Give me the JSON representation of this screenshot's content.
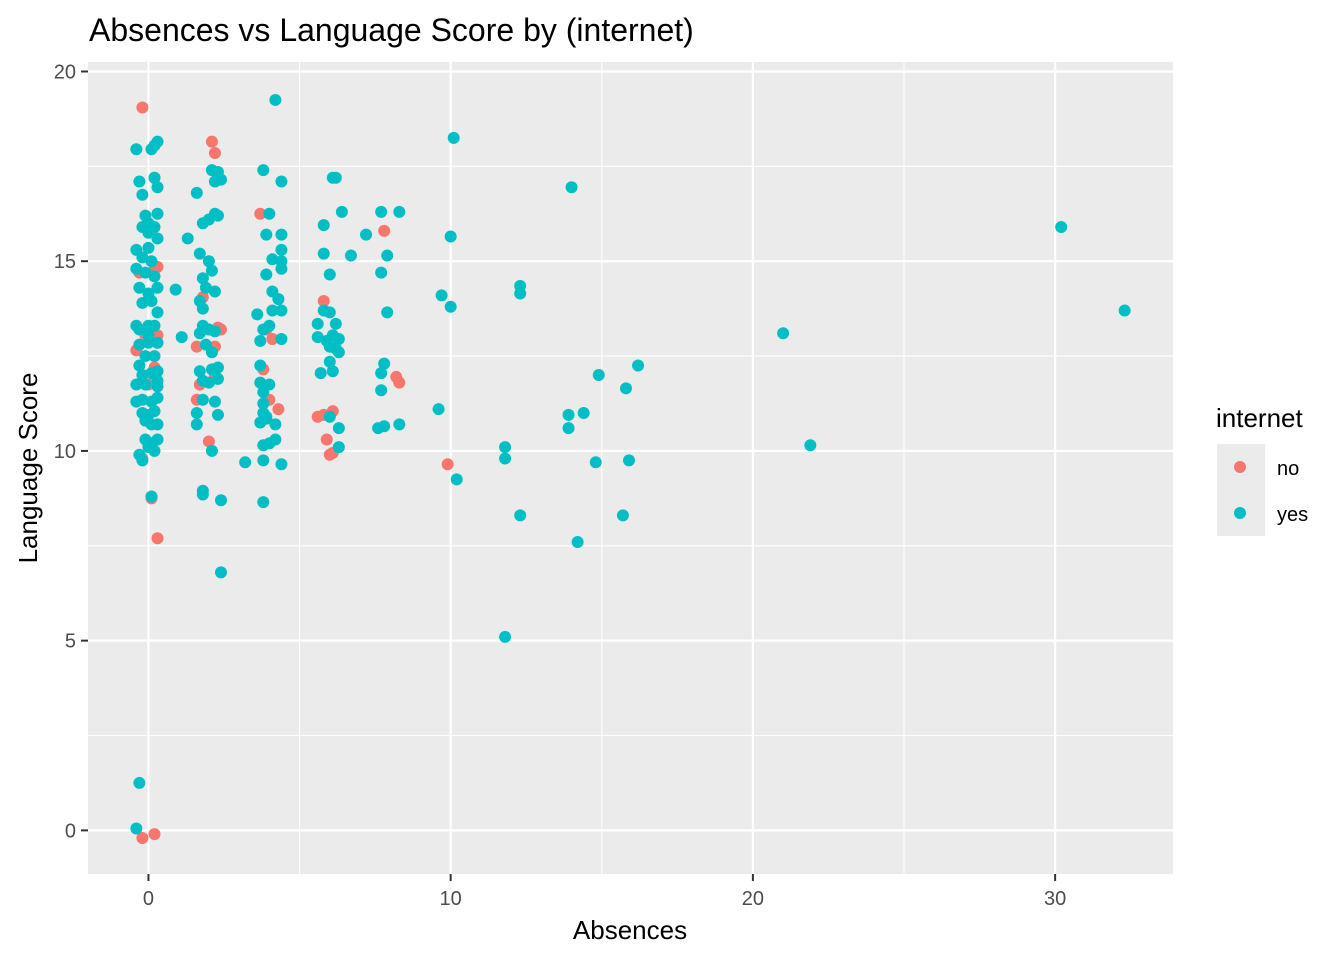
{
  "chart_data": {
    "type": "scatter",
    "title": "Absences vs Language Score by (internet)",
    "xlabel": "Absences",
    "ylabel": "Language Score",
    "xlim": [
      -2.0,
      33.9
    ],
    "ylim": [
      -1.15,
      20.25
    ],
    "x_ticks": [
      0,
      10,
      20,
      30
    ],
    "y_ticks": [
      0,
      5,
      10,
      15,
      20
    ],
    "x_tick_labels": [
      "0",
      "10",
      "20",
      "30"
    ],
    "y_tick_labels": [
      "0",
      "5",
      "10",
      "15",
      "20"
    ],
    "grid": true,
    "legend": {
      "title": "internet",
      "position": "right"
    },
    "colors": {
      "no": "#F8766D",
      "yes": "#00BFC4",
      "panel": "#EBEBEB",
      "grid": "#FFFFFF"
    },
    "series": [
      {
        "name": "no",
        "color": "#F8766D",
        "points": [
          [
            -0.2,
            19.05
          ],
          [
            0.2,
            17.2
          ],
          [
            0.1,
            14.7
          ],
          [
            0.3,
            14.85
          ],
          [
            -0.3,
            14.7
          ],
          [
            -0.4,
            12.65
          ],
          [
            -0.1,
            13.05
          ],
          [
            0.2,
            12.2
          ],
          [
            0.1,
            8.75
          ],
          [
            0.3,
            7.7
          ],
          [
            0.0,
            11.75
          ],
          [
            -0.2,
            9.8
          ],
          [
            -0.2,
            -0.2
          ],
          [
            0.2,
            -0.1
          ],
          [
            0.3,
            13.05
          ],
          [
            2.1,
            18.15
          ],
          [
            2.2,
            17.85
          ],
          [
            1.8,
            14.05
          ],
          [
            1.6,
            12.75
          ],
          [
            2.3,
            13.25
          ],
          [
            2.2,
            12.75
          ],
          [
            1.7,
            11.75
          ],
          [
            1.6,
            11.35
          ],
          [
            2.0,
            10.25
          ],
          [
            2.2,
            12.0
          ],
          [
            2.4,
            13.2
          ],
          [
            3.7,
            16.25
          ],
          [
            3.9,
            13.2
          ],
          [
            4.1,
            12.95
          ],
          [
            3.8,
            12.15
          ],
          [
            4.0,
            11.35
          ],
          [
            4.3,
            11.1
          ],
          [
            5.8,
            13.95
          ],
          [
            5.6,
            10.9
          ],
          [
            5.8,
            10.95
          ],
          [
            6.1,
            11.05
          ],
          [
            5.9,
            10.3
          ],
          [
            6.0,
            9.9
          ],
          [
            6.1,
            9.95
          ],
          [
            7.8,
            15.8
          ],
          [
            8.2,
            11.95
          ],
          [
            8.3,
            11.8
          ],
          [
            9.9,
            9.65
          ]
        ]
      },
      {
        "name": "yes",
        "color": "#00BFC4",
        "points": [
          [
            -0.4,
            17.95
          ],
          [
            -0.3,
            17.1
          ],
          [
            -0.2,
            16.75
          ],
          [
            -0.1,
            16.2
          ],
          [
            0.0,
            16.0
          ],
          [
            0.1,
            17.95
          ],
          [
            0.2,
            18.05
          ],
          [
            0.3,
            18.15
          ],
          [
            0.2,
            17.2
          ],
          [
            0.3,
            16.95
          ],
          [
            0.3,
            16.25
          ],
          [
            -0.2,
            15.9
          ],
          [
            0.0,
            15.75
          ],
          [
            0.2,
            15.9
          ],
          [
            0.3,
            15.6
          ],
          [
            -0.4,
            15.3
          ],
          [
            -0.2,
            15.1
          ],
          [
            0.0,
            15.35
          ],
          [
            0.1,
            15.0
          ],
          [
            -0.4,
            14.8
          ],
          [
            -0.1,
            14.7
          ],
          [
            0.2,
            14.6
          ],
          [
            -0.3,
            14.3
          ],
          [
            0.0,
            14.15
          ],
          [
            0.3,
            14.3
          ],
          [
            -0.2,
            13.9
          ],
          [
            0.1,
            13.95
          ],
          [
            0.3,
            13.65
          ],
          [
            -0.4,
            13.3
          ],
          [
            -0.3,
            13.2
          ],
          [
            0.0,
            13.3
          ],
          [
            0.2,
            13.3
          ],
          [
            0.0,
            13.05
          ],
          [
            -0.3,
            12.8
          ],
          [
            0.0,
            12.85
          ],
          [
            0.3,
            12.85
          ],
          [
            -0.1,
            12.5
          ],
          [
            0.2,
            12.5
          ],
          [
            -0.3,
            12.25
          ],
          [
            0.3,
            12.1
          ],
          [
            -0.2,
            12.0
          ],
          [
            0.1,
            12.05
          ],
          [
            0.3,
            11.85
          ],
          [
            -0.4,
            11.75
          ],
          [
            -0.1,
            11.75
          ],
          [
            0.3,
            11.7
          ],
          [
            -0.4,
            11.3
          ],
          [
            -0.2,
            11.35
          ],
          [
            0.1,
            11.3
          ],
          [
            0.3,
            11.4
          ],
          [
            -0.2,
            11.0
          ],
          [
            0.0,
            10.95
          ],
          [
            0.2,
            11.05
          ],
          [
            -0.1,
            10.8
          ],
          [
            0.1,
            10.7
          ],
          [
            0.3,
            10.7
          ],
          [
            -0.1,
            10.3
          ],
          [
            0.1,
            10.2
          ],
          [
            0.3,
            10.3
          ],
          [
            -0.3,
            9.9
          ],
          [
            0.0,
            10.1
          ],
          [
            0.2,
            10.0
          ],
          [
            -0.2,
            9.75
          ],
          [
            0.1,
            8.8
          ],
          [
            -0.3,
            1.25
          ],
          [
            -0.4,
            0.05
          ],
          [
            0.9,
            14.25
          ],
          [
            1.1,
            13.0
          ],
          [
            1.3,
            15.6
          ],
          [
            1.6,
            16.8
          ],
          [
            1.8,
            16.0
          ],
          [
            2.0,
            16.1
          ],
          [
            2.1,
            17.4
          ],
          [
            2.2,
            17.1
          ],
          [
            2.4,
            17.15
          ],
          [
            2.3,
            17.35
          ],
          [
            2.2,
            16.25
          ],
          [
            2.3,
            16.2
          ],
          [
            1.7,
            15.2
          ],
          [
            2.0,
            15.0
          ],
          [
            2.1,
            14.75
          ],
          [
            1.8,
            14.55
          ],
          [
            1.9,
            14.3
          ],
          [
            2.2,
            14.2
          ],
          [
            1.7,
            13.95
          ],
          [
            1.8,
            13.75
          ],
          [
            1.8,
            13.3
          ],
          [
            2.0,
            13.2
          ],
          [
            2.2,
            13.15
          ],
          [
            1.7,
            13.1
          ],
          [
            1.9,
            12.8
          ],
          [
            2.1,
            12.6
          ],
          [
            1.7,
            12.1
          ],
          [
            2.1,
            12.15
          ],
          [
            2.3,
            12.2
          ],
          [
            1.8,
            11.85
          ],
          [
            2.0,
            11.8
          ],
          [
            2.3,
            11.9
          ],
          [
            1.8,
            11.35
          ],
          [
            2.2,
            11.3
          ],
          [
            1.6,
            11.0
          ],
          [
            2.3,
            10.95
          ],
          [
            1.6,
            10.7
          ],
          [
            2.1,
            10.0
          ],
          [
            1.8,
            8.95
          ],
          [
            1.8,
            8.85
          ],
          [
            2.4,
            8.7
          ],
          [
            2.4,
            6.8
          ],
          [
            3.2,
            9.7
          ],
          [
            3.8,
            17.4
          ],
          [
            4.4,
            17.1
          ],
          [
            4.2,
            19.25
          ],
          [
            4.0,
            16.25
          ],
          [
            3.9,
            15.7
          ],
          [
            4.4,
            15.7
          ],
          [
            4.1,
            15.05
          ],
          [
            4.4,
            15.0
          ],
          [
            4.4,
            15.3
          ],
          [
            4.4,
            14.8
          ],
          [
            3.9,
            14.65
          ],
          [
            4.1,
            14.2
          ],
          [
            4.3,
            14.0
          ],
          [
            3.6,
            13.6
          ],
          [
            4.1,
            13.7
          ],
          [
            4.4,
            13.7
          ],
          [
            3.8,
            13.2
          ],
          [
            4.0,
            13.3
          ],
          [
            4.4,
            12.95
          ],
          [
            3.7,
            12.9
          ],
          [
            3.7,
            12.25
          ],
          [
            4.0,
            11.75
          ],
          [
            3.7,
            11.8
          ],
          [
            3.8,
            11.55
          ],
          [
            3.8,
            11.25
          ],
          [
            3.8,
            11.0
          ],
          [
            3.9,
            10.9
          ],
          [
            3.9,
            10.85
          ],
          [
            3.7,
            10.75
          ],
          [
            4.2,
            10.7
          ],
          [
            3.8,
            10.15
          ],
          [
            4.0,
            10.2
          ],
          [
            4.2,
            10.3
          ],
          [
            4.4,
            9.65
          ],
          [
            3.8,
            9.75
          ],
          [
            3.8,
            8.65
          ],
          [
            5.6,
            13.35
          ],
          [
            5.8,
            13.7
          ],
          [
            6.0,
            13.65
          ],
          [
            6.2,
            13.35
          ],
          [
            6.3,
            12.95
          ],
          [
            5.6,
            13.0
          ],
          [
            5.9,
            12.9
          ],
          [
            6.0,
            12.75
          ],
          [
            6.2,
            12.7
          ],
          [
            6.1,
            13.05
          ],
          [
            6.3,
            12.6
          ],
          [
            6.0,
            12.35
          ],
          [
            5.7,
            12.05
          ],
          [
            6.1,
            12.1
          ],
          [
            6.0,
            10.9
          ],
          [
            6.3,
            10.6
          ],
          [
            6.3,
            10.1
          ],
          [
            5.8,
            15.2
          ],
          [
            5.8,
            15.95
          ],
          [
            6.0,
            14.65
          ],
          [
            6.4,
            16.3
          ],
          [
            6.1,
            17.2
          ],
          [
            6.2,
            17.2
          ],
          [
            6.7,
            15.15
          ],
          [
            7.2,
            15.7
          ],
          [
            7.7,
            16.3
          ],
          [
            8.3,
            16.3
          ],
          [
            7.9,
            15.15
          ],
          [
            7.7,
            14.7
          ],
          [
            7.9,
            13.65
          ],
          [
            7.8,
            12.3
          ],
          [
            7.7,
            12.05
          ],
          [
            7.7,
            11.6
          ],
          [
            7.6,
            10.6
          ],
          [
            7.8,
            10.65
          ],
          [
            8.3,
            10.7
          ],
          [
            9.6,
            11.1
          ],
          [
            9.7,
            14.1
          ],
          [
            10.0,
            13.8
          ],
          [
            10.0,
            15.65
          ],
          [
            10.1,
            18.25
          ],
          [
            10.2,
            9.25
          ],
          [
            11.8,
            9.8
          ],
          [
            11.8,
            10.1
          ],
          [
            12.3,
            14.15
          ],
          [
            12.3,
            14.35
          ],
          [
            12.3,
            8.3
          ],
          [
            11.8,
            5.1
          ],
          [
            13.9,
            10.95
          ],
          [
            13.9,
            10.6
          ],
          [
            14.0,
            16.95
          ],
          [
            14.4,
            11.0
          ],
          [
            14.9,
            12.0
          ],
          [
            14.8,
            9.7
          ],
          [
            14.2,
            7.6
          ],
          [
            15.7,
            8.3
          ],
          [
            15.8,
            11.65
          ],
          [
            15.9,
            9.75
          ],
          [
            16.2,
            12.25
          ],
          [
            21.0,
            13.1
          ],
          [
            21.9,
            10.15
          ],
          [
            30.2,
            15.9
          ],
          [
            32.3,
            13.7
          ]
        ]
      }
    ]
  }
}
